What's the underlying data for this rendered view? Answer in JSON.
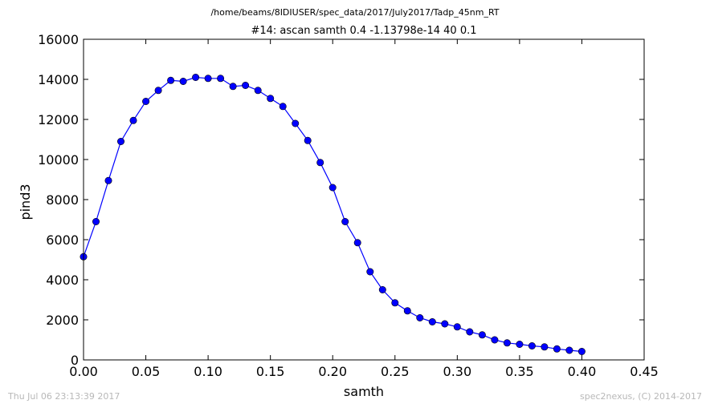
{
  "figure": {
    "suptitle": "/home/beams/8IDIUSER/spec_data/2017/July2017/Tadp_45nm_RT",
    "footer_left": "Thu Jul 06 23:13:39 2017",
    "footer_right": "spec2nexus, (C) 2014-2017"
  },
  "chart_data": {
    "type": "line",
    "title": "#14: ascan  samth 0.4 -1.13798e-14  40 0.1",
    "xlabel": "samth",
    "ylabel": "pind3",
    "xlim": [
      0.0,
      0.45
    ],
    "ylim": [
      0,
      16000
    ],
    "xticks": [
      "0.00",
      "0.05",
      "0.10",
      "0.15",
      "0.20",
      "0.25",
      "0.30",
      "0.35",
      "0.40",
      "0.45"
    ],
    "yticks": [
      "0",
      "2000",
      "4000",
      "6000",
      "8000",
      "10000",
      "12000",
      "14000",
      "16000"
    ],
    "grid": false,
    "marker": "circle",
    "color": "#0000ff",
    "series": [
      {
        "x": [
          0.0,
          0.01,
          0.02,
          0.03,
          0.04,
          0.05,
          0.06,
          0.07,
          0.08,
          0.09,
          0.1,
          0.11,
          0.12,
          0.13,
          0.14,
          0.15,
          0.16,
          0.17,
          0.18,
          0.19,
          0.2,
          0.21,
          0.22,
          0.23,
          0.24,
          0.25,
          0.26,
          0.27,
          0.28,
          0.29,
          0.3,
          0.31,
          0.32,
          0.33,
          0.34,
          0.35,
          0.36,
          0.37,
          0.38,
          0.39,
          0.4
        ],
        "y": [
          5150,
          6900,
          8950,
          10900,
          11950,
          12900,
          13450,
          13950,
          13900,
          14100,
          14050,
          14050,
          13650,
          13700,
          13450,
          13050,
          12650,
          11800,
          10950,
          9850,
          8600,
          6900,
          5850,
          4400,
          3500,
          2850,
          2450,
          2100,
          1900,
          1800,
          1650,
          1400,
          1250,
          1000,
          850,
          780,
          700,
          650,
          550,
          480,
          420
        ]
      }
    ]
  }
}
